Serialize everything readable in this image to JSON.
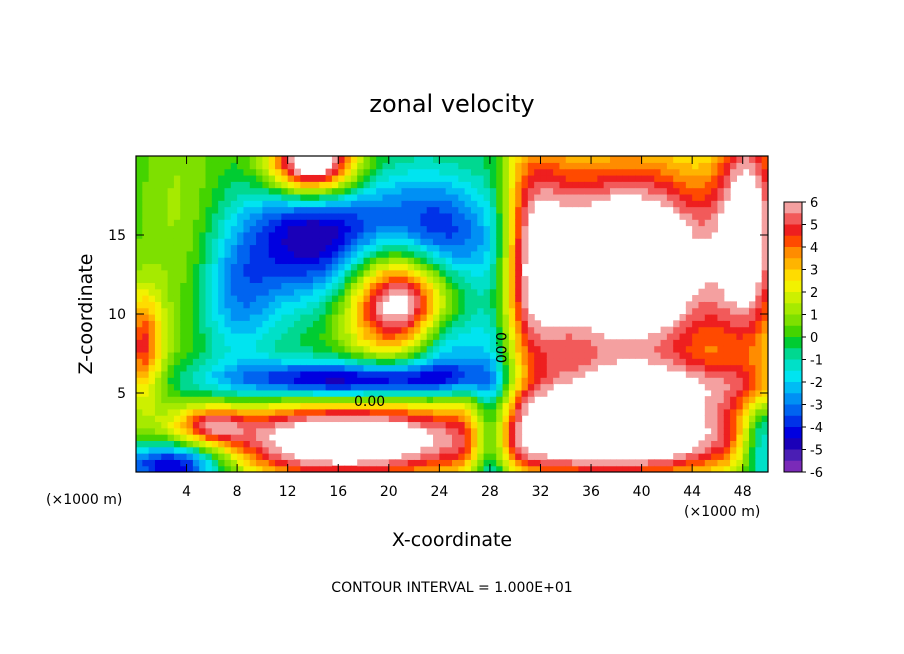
{
  "chart_data": {
    "type": "heatmap",
    "title": "zonal velocity",
    "xlabel": "X-coordinate",
    "ylabel": "Z-coordinate",
    "x_units": "(×1000 m)",
    "y_units": "(×1000 m)",
    "xlim": [
      0,
      50
    ],
    "ylim": [
      0,
      20
    ],
    "x_ticks": [
      4,
      8,
      12,
      16,
      20,
      24,
      28,
      32,
      36,
      40,
      44,
      48
    ],
    "y_ticks": [
      5,
      10,
      15
    ],
    "colorbar": {
      "ticks": [
        6,
        5,
        4,
        3,
        2,
        1,
        0,
        -1,
        -2,
        -3,
        -4,
        -5,
        -6
      ],
      "bands": [
        {
          "lo": 5.5,
          "hi": 6.0,
          "color": "#f4a0a0"
        },
        {
          "lo": 5.0,
          "hi": 5.5,
          "color": "#f25a5a"
        },
        {
          "lo": 4.5,
          "hi": 5.0,
          "color": "#ee1f1f"
        },
        {
          "lo": 4.0,
          "hi": 4.5,
          "color": "#ff4a00"
        },
        {
          "lo": 3.5,
          "hi": 4.0,
          "color": "#ff8c00"
        },
        {
          "lo": 3.0,
          "hi": 3.5,
          "color": "#ffb400"
        },
        {
          "lo": 2.5,
          "hi": 3.0,
          "color": "#ffdc00"
        },
        {
          "lo": 2.0,
          "hi": 2.5,
          "color": "#f2f200"
        },
        {
          "lo": 1.5,
          "hi": 2.0,
          "color": "#cdf000"
        },
        {
          "lo": 1.0,
          "hi": 1.5,
          "color": "#a6ea00"
        },
        {
          "lo": 0.5,
          "hi": 1.0,
          "color": "#7ee000"
        },
        {
          "lo": 0.0,
          "hi": 0.5,
          "color": "#44d400"
        },
        {
          "lo": -0.5,
          "hi": 0.0,
          "color": "#00cc32"
        },
        {
          "lo": -1.0,
          "hi": -0.5,
          "color": "#00d890"
        },
        {
          "lo": -1.5,
          "hi": -1.0,
          "color": "#00e0c8"
        },
        {
          "lo": -2.0,
          "hi": -1.5,
          "color": "#00e4f0"
        },
        {
          "lo": -2.5,
          "hi": -2.0,
          "color": "#00bcf4"
        },
        {
          "lo": -3.0,
          "hi": -2.5,
          "color": "#0090f4"
        },
        {
          "lo": -3.5,
          "hi": -3.0,
          "color": "#0064f0"
        },
        {
          "lo": -4.0,
          "hi": -3.5,
          "color": "#0032e8"
        },
        {
          "lo": -4.5,
          "hi": -4.0,
          "color": "#0000e0"
        },
        {
          "lo": -5.0,
          "hi": -4.5,
          "color": "#1a00b8"
        },
        {
          "lo": -5.5,
          "hi": -5.0,
          "color": "#4a1eb4"
        },
        {
          "lo": -6.0,
          "hi": -5.5,
          "color": "#7a2ab8"
        }
      ]
    },
    "contour_labels": [
      "0.00",
      "0.00"
    ],
    "contour_interval_note": "CONTOUR INTERVAL = 1.000E+01",
    "field": {
      "description_free": true,
      "grid": "analytic",
      "components": [
        {
          "kind": "gauss",
          "x": 3.5,
          "z": 16,
          "sx": 2.2,
          "sz": 6,
          "amp": 1.2
        },
        {
          "kind": "gauss",
          "x": 8,
          "z": 11,
          "sx": 2.2,
          "sz": 3,
          "amp": -2.5
        },
        {
          "kind": "gauss",
          "x": 14,
          "z": 15,
          "sx": 4,
          "sz": 3,
          "amp": -5.0
        },
        {
          "kind": "gauss",
          "x": 24,
          "z": 14.5,
          "sx": 4,
          "sz": 3,
          "amp": -5.2
        },
        {
          "kind": "gauss",
          "x": 18,
          "z": 5.8,
          "sx": 8,
          "sz": 0.9,
          "amp": -6.0
        },
        {
          "kind": "gauss",
          "x": 24.5,
          "z": 8,
          "sx": 2.5,
          "sz": 2,
          "amp": -3.5
        },
        {
          "kind": "gauss",
          "x": 28.5,
          "z": 10,
          "sx": 1.3,
          "sz": 9,
          "amp": -2.5
        },
        {
          "kind": "gauss",
          "x": 31,
          "z": 14,
          "sx": 2.2,
          "sz": 6,
          "amp": 4.2
        },
        {
          "kind": "gauss",
          "x": 39,
          "z": 13,
          "sx": 6,
          "sz": 5,
          "amp": 9.0
        },
        {
          "kind": "gauss",
          "x": 48.5,
          "z": 16,
          "sx": 1.8,
          "sz": 6,
          "amp": 5.5
        },
        {
          "kind": "gauss",
          "x": 40,
          "z": 5.5,
          "sx": 10,
          "sz": 1.2,
          "amp": 3.5
        },
        {
          "kind": "gauss",
          "x": 0.5,
          "z": 8,
          "sx": 1.2,
          "sz": 2.5,
          "amp": 4.5
        },
        {
          "kind": "gauss",
          "x": 6,
          "z": 3,
          "sx": 2,
          "sz": 0.8,
          "amp": 3.5
        },
        {
          "kind": "gauss",
          "x": 16,
          "z": 2,
          "sx": 7,
          "sz": 1.8,
          "amp": 8.0
        },
        {
          "kind": "gauss",
          "x": 38,
          "z": 2.2,
          "sx": 8,
          "sz": 1.8,
          "amp": 8.0
        },
        {
          "kind": "gauss",
          "x": 28,
          "z": 2,
          "sx": 1.0,
          "sz": 2.5,
          "amp": -3.5
        },
        {
          "kind": "gauss",
          "x": 3,
          "z": 0.5,
          "sx": 3,
          "sz": 1,
          "amp": -5.5
        },
        {
          "kind": "gauss",
          "x": 49.5,
          "z": 2,
          "sx": 1.2,
          "sz": 2,
          "amp": -4.5
        },
        {
          "kind": "gauss",
          "x": 21,
          "z": 11,
          "sx": 3,
          "sz": 2.5,
          "amp": 9.0
        },
        {
          "kind": "gauss",
          "x": 14,
          "z": 19.5,
          "sx": 2.5,
          "sz": 1.5,
          "amp": 9.0
        }
      ]
    }
  }
}
